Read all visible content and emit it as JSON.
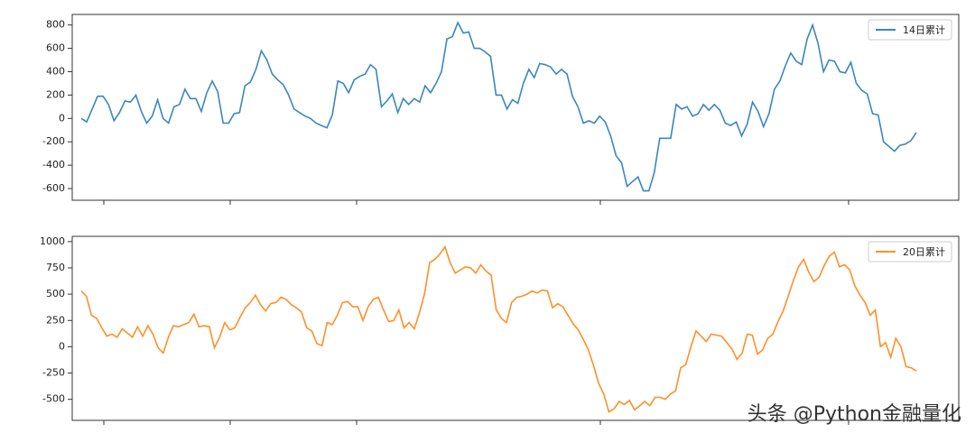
{
  "watermark": "头条 @Python金融量化",
  "chart_data": [
    {
      "type": "line",
      "ylim": [
        -700,
        890
      ],
      "yticks": [
        -600,
        -400,
        -200,
        0,
        200,
        400,
        600,
        800
      ],
      "legend": "upper right",
      "series": [
        {
          "name": "14日累计",
          "color": "#3a86c0",
          "values": [
            0,
            -30,
            80,
            190,
            190,
            120,
            -20,
            50,
            150,
            140,
            200,
            60,
            -40,
            20,
            160,
            0,
            -40,
            100,
            120,
            250,
            170,
            170,
            60,
            220,
            320,
            230,
            -40,
            -40,
            40,
            50,
            280,
            310,
            420,
            580,
            500,
            380,
            330,
            290,
            200,
            80,
            50,
            20,
            0,
            -40,
            -60,
            -80,
            30,
            320,
            300,
            220,
            330,
            360,
            380,
            460,
            420,
            100,
            150,
            210,
            50,
            170,
            120,
            170,
            140,
            280,
            220,
            300,
            400,
            680,
            700,
            820,
            730,
            740,
            600,
            600,
            570,
            530,
            200,
            200,
            80,
            160,
            130,
            300,
            420,
            350,
            470,
            460,
            440,
            380,
            420,
            380,
            190,
            100,
            -40,
            -20,
            -40,
            20,
            -30,
            -150,
            -320,
            -380,
            -580,
            -540,
            -500,
            -620,
            -620,
            -460,
            -170,
            -170,
            -170,
            120,
            80,
            100,
            20,
            40,
            120,
            70,
            120,
            70,
            -40,
            -60,
            -30,
            -150,
            -50,
            140,
            60,
            -70,
            40,
            250,
            320,
            450,
            560,
            490,
            460,
            680,
            800,
            640,
            400,
            500,
            490,
            400,
            390,
            480,
            300,
            240,
            210,
            40,
            30,
            -200,
            -240,
            -280,
            -230,
            -220,
            -190,
            -120
          ]
        }
      ]
    },
    {
      "type": "line",
      "ylim": [
        -700,
        1050
      ],
      "yticks": [
        -500,
        -250,
        0,
        250,
        500,
        750,
        1000
      ],
      "legend": "upper right",
      "series": [
        {
          "name": "20日累计",
          "color": "#ff902a",
          "values": [
            530,
            480,
            300,
            270,
            180,
            100,
            120,
            90,
            170,
            130,
            90,
            190,
            100,
            200,
            120,
            -10,
            -60,
            90,
            200,
            190,
            210,
            230,
            310,
            190,
            200,
            190,
            -10,
            90,
            230,
            160,
            180,
            280,
            370,
            420,
            490,
            400,
            340,
            410,
            420,
            470,
            450,
            400,
            370,
            330,
            180,
            150,
            30,
            10,
            230,
            210,
            300,
            420,
            430,
            380,
            380,
            250,
            380,
            450,
            470,
            350,
            240,
            250,
            350,
            180,
            230,
            170,
            320,
            500,
            800,
            830,
            880,
            950,
            800,
            700,
            730,
            760,
            750,
            700,
            780,
            720,
            680,
            350,
            270,
            230,
            420,
            470,
            480,
            500,
            530,
            510,
            540,
            530,
            370,
            410,
            380,
            300,
            220,
            160,
            70,
            -30,
            -180,
            -350,
            -450,
            -620,
            -590,
            -520,
            -550,
            -510,
            -600,
            -560,
            -520,
            -560,
            -480,
            -480,
            -500,
            -450,
            -420,
            -200,
            -170,
            0,
            150,
            100,
            50,
            120,
            110,
            100,
            40,
            -20,
            -120,
            -60,
            120,
            110,
            -70,
            -30,
            80,
            120,
            240,
            340,
            480,
            630,
            760,
            830,
            710,
            620,
            660,
            770,
            860,
            900,
            760,
            780,
            730,
            580,
            490,
            420,
            300,
            350,
            0,
            40,
            -100,
            80,
            0,
            -190,
            -200,
            -230
          ]
        }
      ]
    }
  ]
}
